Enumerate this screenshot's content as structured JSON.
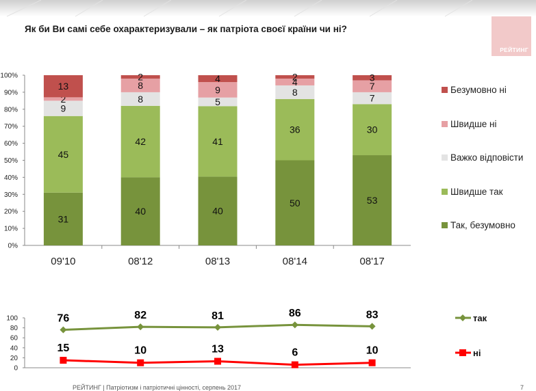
{
  "title": "Як  би Ви самі себе охарактеризували – як патріота своєї країни чи ні?",
  "logo_text": "РЕЙТИНГ",
  "footer_text": "РЕЙТИНГ | Патріотизм і патріотичні цінності, серпень 2017",
  "page_number": "7",
  "colors": {
    "tak_bezumovno": "#77933c",
    "shvydshe_tak": "#9bbb59",
    "vazhko": "#e3e3e3",
    "shvydshe_ni": "#e6a0a4",
    "bezumovno_ni": "#c0504d",
    "line_tak": "#77933c",
    "line_ni": "#ff0000"
  },
  "chart_data": [
    {
      "type": "bar",
      "stacked": true,
      "categories": [
        "09'10",
        "08'12",
        "08'13",
        "08'14",
        "08'17"
      ],
      "y_ticks": [
        "0%",
        "10%",
        "20%",
        "30%",
        "40%",
        "50%",
        "60%",
        "70%",
        "80%",
        "90%",
        "100%"
      ],
      "ylim": [
        0,
        100
      ],
      "legend_position": "right",
      "series": [
        {
          "name": "Так, безумовно",
          "values": [
            31,
            40,
            40,
            50,
            53
          ],
          "color_key": "tak_bezumovno"
        },
        {
          "name": "Швидше так",
          "values": [
            45,
            42,
            41,
            36,
            30
          ],
          "color_key": "shvydshe_tak"
        },
        {
          "name": "Важко відповісти",
          "values": [
            9,
            8,
            5,
            8,
            7
          ],
          "color_key": "vazhko"
        },
        {
          "name": "Швидше ні",
          "values": [
            2,
            8,
            9,
            4,
            7
          ],
          "color_key": "shvydshe_ni"
        },
        {
          "name": "Безумовно ні",
          "values": [
            13,
            2,
            4,
            2,
            3
          ],
          "color_key": "bezumovno_ni"
        }
      ],
      "legend_order": [
        "Безумовно ні",
        "Швидше ні",
        "Важко відповісти",
        "Швидше так",
        "Так, безумовно"
      ]
    },
    {
      "type": "line",
      "categories": [
        "09'10",
        "08'12",
        "08'13",
        "08'14",
        "08'17"
      ],
      "y_ticks": [
        "0",
        "20",
        "40",
        "60",
        "80",
        "100"
      ],
      "ylim": [
        0,
        100
      ],
      "legend_position": "right",
      "series": [
        {
          "name": "так",
          "values": [
            76,
            82,
            81,
            86,
            83
          ],
          "color_key": "line_tak",
          "marker": "diamond"
        },
        {
          "name": "ні",
          "values": [
            15,
            10,
            13,
            6,
            10
          ],
          "color_key": "line_ni",
          "marker": "square"
        }
      ]
    }
  ]
}
